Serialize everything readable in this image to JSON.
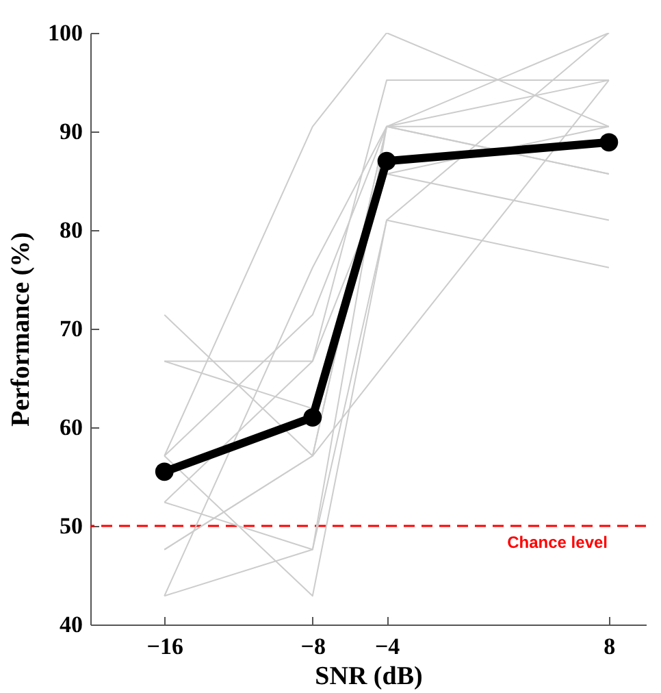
{
  "chart_data": {
    "type": "line",
    "xlabel": "SNR (dB)",
    "ylabel": "Performance (%)",
    "x": [
      -16,
      -8,
      -4,
      8
    ],
    "xlim": [
      -20,
      10
    ],
    "xticks": [
      -16,
      -8,
      -4,
      8
    ],
    "ylim": [
      40,
      100
    ],
    "yticks": [
      40,
      50,
      60,
      70,
      80,
      90,
      100
    ],
    "grid": false,
    "series": [
      {
        "color": "#cccccc",
        "marker": "none",
        "values": [
          57.1,
          90.5,
          100,
          90.5
        ]
      },
      {
        "color": "#cccccc",
        "marker": "none",
        "values": [
          71.4,
          57.1,
          90.5,
          85.7
        ]
      },
      {
        "color": "#cccccc",
        "marker": "none",
        "values": [
          66.7,
          66.7,
          95.2,
          95.2
        ]
      },
      {
        "color": "#cccccc",
        "marker": "none",
        "values": [
          57.1,
          71.4,
          90.5,
          100
        ]
      },
      {
        "color": "#cccccc",
        "marker": "none",
        "values": [
          52.4,
          66.7,
          85.7,
          81.0
        ]
      },
      {
        "color": "#cccccc",
        "marker": "none",
        "values": [
          47.6,
          57.1,
          90.5,
          95.2
        ]
      },
      {
        "color": "#cccccc",
        "marker": "none",
        "values": [
          42.9,
          47.6,
          81.0,
          76.2
        ]
      },
      {
        "color": "#cccccc",
        "marker": "none",
        "values": [
          42.9,
          76.2,
          90.5,
          90.5
        ]
      },
      {
        "color": "#cccccc",
        "marker": "none",
        "values": [
          57.1,
          42.9,
          81.0,
          100
        ]
      },
      {
        "color": "#cccccc",
        "marker": "none",
        "values": [
          52.4,
          47.6,
          90.5,
          85.7
        ]
      },
      {
        "color": "#cccccc",
        "marker": "none",
        "values": [
          47.6,
          57.1,
          66.7,
          95.2
        ]
      },
      {
        "color": "#cccccc",
        "marker": "none",
        "values": [
          66.7,
          61.9,
          85.7,
          90.5
        ]
      },
      {
        "color": "#000000",
        "marker": "circle",
        "values": [
          55.5,
          61.0,
          87.0,
          88.9
        ]
      }
    ],
    "ref_lines": [
      {
        "axis": "y",
        "value": 50,
        "label": "Chance level",
        "color": "#ff0000",
        "line_style": "dashed"
      }
    ]
  }
}
